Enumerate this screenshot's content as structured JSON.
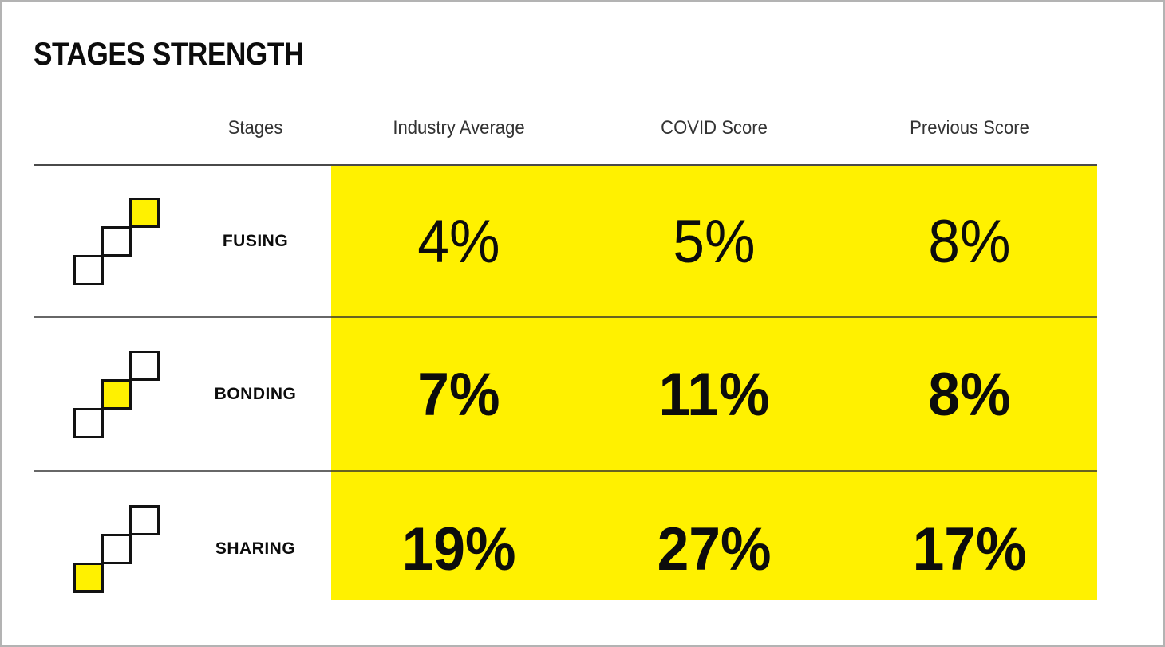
{
  "title": "STAGES STRENGTH",
  "colors": {
    "highlight_yellow": "#FFF100",
    "frame_border": "#B3B3B3",
    "header_line": "#4A4A4A",
    "row_separator": "#6E6E6E",
    "text": "#0C0C0C",
    "header_text": "#333333"
  },
  "table": {
    "headers": [
      {
        "id": "stages",
        "label": "Stages"
      },
      {
        "id": "industry_average",
        "label": "Industry Average"
      },
      {
        "id": "covid_score",
        "label": "COVID Score"
      },
      {
        "id": "previous_score",
        "label": "Previous Score"
      }
    ],
    "rows": [
      {
        "stage": "FUSING",
        "icon": "stairs-icon-top-highlighted",
        "highlight_position": "top",
        "value_weight": "regular",
        "industry_average": "4%",
        "covid_score": "5%",
        "previous_score": "8%"
      },
      {
        "stage": "BONDING",
        "icon": "stairs-icon-middle-highlighted",
        "highlight_position": "middle",
        "value_weight": "bold",
        "industry_average": "7%",
        "covid_score": "11%",
        "previous_score": "8%"
      },
      {
        "stage": "SHARING",
        "icon": "stairs-icon-bottom-highlighted",
        "highlight_position": "bottom",
        "value_weight": "bold",
        "industry_average": "19%",
        "covid_score": "27%",
        "previous_score": "17%"
      }
    ]
  },
  "chart_data": {
    "type": "table",
    "title": "STAGES STRENGTH",
    "categories": [
      "FUSING",
      "BONDING",
      "SHARING"
    ],
    "columns": [
      "Industry Average",
      "COVID Score",
      "Previous Score"
    ],
    "series": [
      {
        "name": "Industry Average",
        "values": [
          4,
          7,
          19
        ],
        "unit": "%"
      },
      {
        "name": "COVID Score",
        "values": [
          5,
          11,
          27
        ],
        "unit": "%"
      },
      {
        "name": "Previous Score",
        "values": [
          8,
          8,
          17
        ],
        "unit": "%"
      }
    ],
    "layout_hints": {
      "highlight_block_color": "#FFF100",
      "first_row_weight": "regular",
      "other_rows_weight": "bold",
      "row_icon": "three diagonal steps, highlighted step rises with stage"
    }
  }
}
